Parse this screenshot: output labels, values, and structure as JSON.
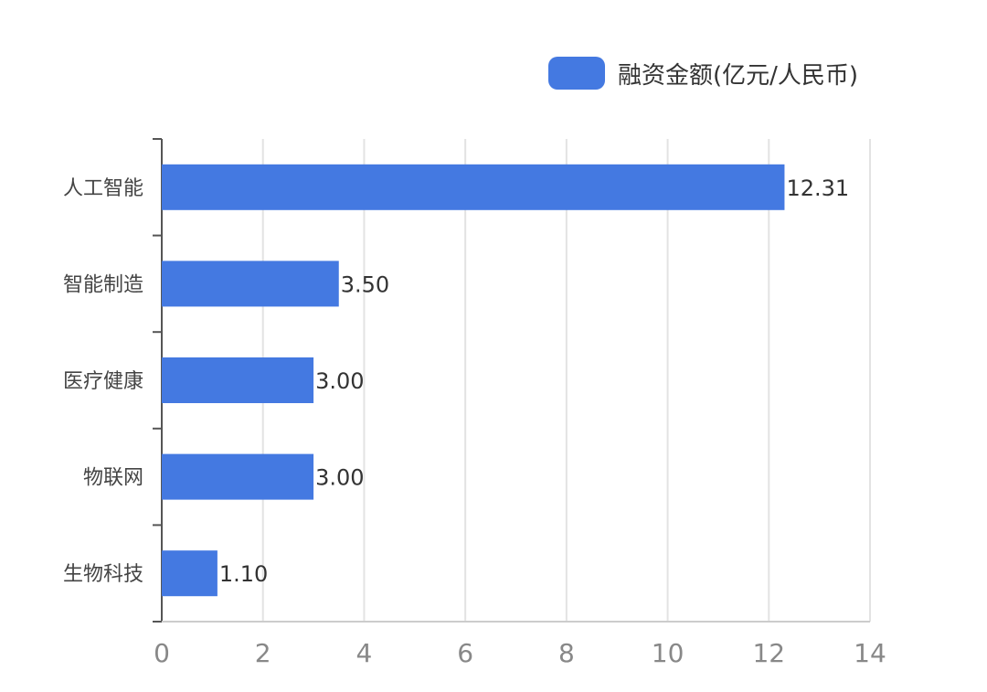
{
  "chart_data": {
    "type": "bar",
    "orientation": "horizontal",
    "categories": [
      "人工智能",
      "智能制造",
      "医疗健康",
      "物联网",
      "生物科技"
    ],
    "series": [
      {
        "name": "融资金额(亿元/人民币)",
        "values": [
          12.31,
          3.5,
          3.0,
          3.0,
          1.1
        ]
      }
    ],
    "value_labels": [
      "12.31",
      "3.50",
      "3.00",
      "3.00",
      "1.10"
    ],
    "x_ticks": [
      "0",
      "2",
      "4",
      "6",
      "8",
      "10",
      "12",
      "14"
    ],
    "xlim": [
      0,
      14
    ],
    "grid": "vertical",
    "legend_position": "top-right",
    "colors": {
      "bar": "#4479E1",
      "grid": "#e3e3e3",
      "axis": "#555555",
      "tick_text": "#888888",
      "category_text": "#444444",
      "value_text": "#333333"
    }
  }
}
